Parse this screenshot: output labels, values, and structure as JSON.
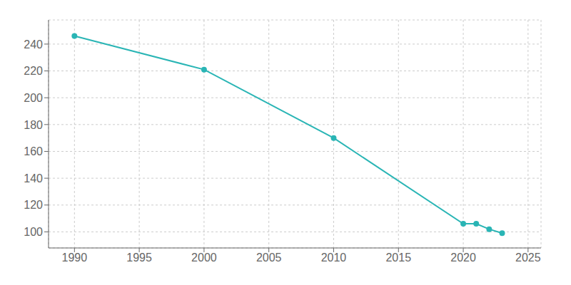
{
  "chart_data": {
    "type": "line",
    "x": [
      1990,
      2000,
      2010,
      2020,
      2021,
      2022,
      2023
    ],
    "values": [
      246,
      221,
      170,
      106,
      106,
      102,
      99
    ],
    "color": "#2ab5b5",
    "marker": "circle",
    "xlim": [
      1988,
      2026
    ],
    "ylim": [
      88,
      258
    ],
    "xticks": [
      1990,
      1995,
      2000,
      2005,
      2010,
      2015,
      2020,
      2025
    ],
    "yticks": [
      100,
      120,
      140,
      160,
      180,
      200,
      220,
      240
    ],
    "grid": true
  }
}
